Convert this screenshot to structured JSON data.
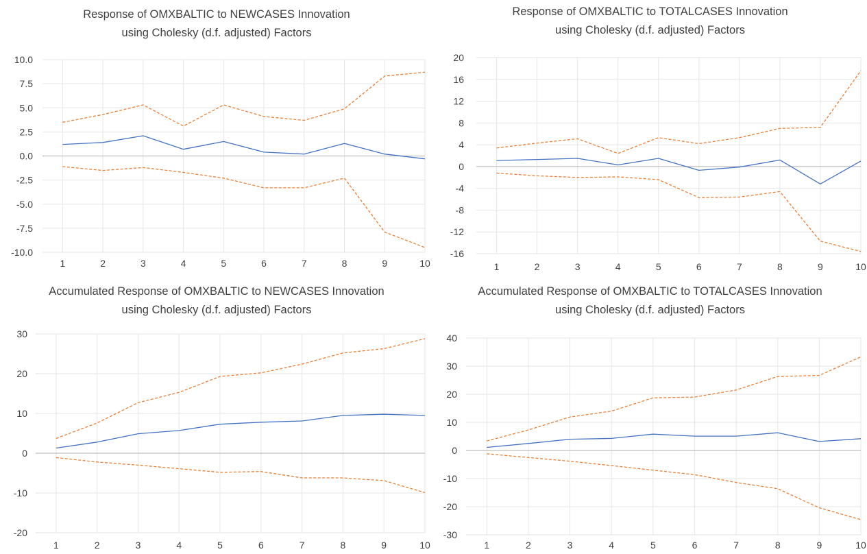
{
  "colors": {
    "response": "#4472c4",
    "band": "#ed7d31",
    "grid": "#e6e6e6",
    "zero": "#bfbfbf"
  },
  "chart_data": [
    {
      "type": "line",
      "title_lines": [
        "Response of OMXBALTIC to NEWCASES Innovation",
        "using Cholesky (d.f. adjusted) Factors"
      ],
      "x": [
        1,
        2,
        3,
        4,
        5,
        6,
        7,
        8,
        9,
        10
      ],
      "x_tick_labels": [
        "1",
        "2",
        "3",
        "4",
        "5",
        "6",
        "7",
        "8",
        "9",
        "10"
      ],
      "ylim": [
        -10,
        10
      ],
      "y_ticks": [
        10,
        7.5,
        5,
        2.5,
        0,
        -2.5,
        -5,
        -7.5,
        -10
      ],
      "y_tick_labels": [
        "10.0",
        "7.5",
        "5.0",
        "2.5",
        "0.0",
        "-2.5",
        "-5.0",
        "-7.5",
        "-10.0"
      ],
      "series": [
        {
          "role": "response",
          "values": [
            1.2,
            1.4,
            2.1,
            0.7,
            1.5,
            0.4,
            0.2,
            1.3,
            0.2,
            -0.3
          ]
        },
        {
          "role": "upper",
          "values": [
            3.5,
            4.3,
            5.3,
            3.1,
            5.3,
            4.1,
            3.7,
            4.9,
            8.3,
            8.7
          ]
        },
        {
          "role": "lower",
          "values": [
            -1.1,
            -1.5,
            -1.2,
            -1.7,
            -2.3,
            -3.3,
            -3.3,
            -2.3,
            -7.9,
            -9.5
          ]
        }
      ]
    },
    {
      "type": "line",
      "title_lines": [
        "Response of OMXBALTIC to TOTALCASES Innovation",
        "using Cholesky (d.f. adjusted) Factors"
      ],
      "x": [
        1,
        2,
        3,
        4,
        5,
        6,
        7,
        8,
        9,
        10
      ],
      "x_tick_labels": [
        "1",
        "2",
        "3",
        "4",
        "5",
        "6",
        "7",
        "8",
        "9",
        "10"
      ],
      "ylim": [
        -16,
        20
      ],
      "y_ticks": [
        20,
        16,
        12,
        8,
        4,
        0,
        -4,
        -8,
        -12,
        -16
      ],
      "y_tick_labels": [
        "20",
        "16",
        "12",
        "8",
        "4",
        "0",
        "-4",
        "-8",
        "-12",
        "-16"
      ],
      "series": [
        {
          "role": "response",
          "values": [
            1.1,
            1.3,
            1.5,
            0.3,
            1.5,
            -0.7,
            -0.1,
            1.2,
            -3.2,
            1.0
          ]
        },
        {
          "role": "upper",
          "values": [
            3.4,
            4.3,
            5.1,
            2.4,
            5.3,
            4.2,
            5.3,
            7.0,
            7.2,
            17.6
          ]
        },
        {
          "role": "lower",
          "values": [
            -1.2,
            -1.7,
            -2.0,
            -1.9,
            -2.4,
            -5.7,
            -5.6,
            -4.6,
            -13.7,
            -15.6
          ]
        }
      ]
    },
    {
      "type": "line",
      "title_lines": [
        "Accumulated Response of OMXBALTIC to NEWCASES Innovation",
        "using Cholesky (d.f. adjusted) Factors"
      ],
      "x": [
        1,
        2,
        3,
        4,
        5,
        6,
        7,
        8,
        9,
        10
      ],
      "x_tick_labels": [
        "1",
        "2",
        "3",
        "4",
        "5",
        "6",
        "7",
        "8",
        "9",
        "10"
      ],
      "ylim": [
        -20,
        30
      ],
      "y_ticks": [
        30,
        20,
        10,
        0,
        -10,
        -20
      ],
      "y_tick_labels": [
        "30",
        "20",
        "10",
        "0",
        "-10",
        "-20"
      ],
      "series": [
        {
          "role": "response",
          "values": [
            1.3,
            2.8,
            4.9,
            5.7,
            7.3,
            7.8,
            8.1,
            9.5,
            9.8,
            9.5
          ]
        },
        {
          "role": "upper",
          "values": [
            3.7,
            7.6,
            12.7,
            15.3,
            19.3,
            20.2,
            22.4,
            25.2,
            26.3,
            28.8
          ]
        },
        {
          "role": "lower",
          "values": [
            -1.1,
            -2.2,
            -3.0,
            -3.9,
            -4.8,
            -4.6,
            -6.2,
            -6.2,
            -6.9,
            -9.9
          ]
        }
      ]
    },
    {
      "type": "line",
      "title_lines": [
        "Accumulated Response of OMXBALTIC to TOTALCASES Innovation",
        "using Cholesky (d.f. adjusted) Factors"
      ],
      "x": [
        1,
        2,
        3,
        4,
        5,
        6,
        7,
        8,
        9,
        10
      ],
      "x_tick_labels": [
        "1",
        "2",
        "3",
        "4",
        "5",
        "6",
        "7",
        "8",
        "9",
        "10"
      ],
      "ylim": [
        -30,
        40
      ],
      "y_ticks": [
        40,
        30,
        20,
        10,
        0,
        -10,
        -20,
        -30
      ],
      "y_tick_labels": [
        "40",
        "30",
        "20",
        "10",
        "0",
        "-10",
        "-20",
        "-30"
      ],
      "series": [
        {
          "role": "response",
          "values": [
            1.1,
            2.5,
            4.0,
            4.3,
            5.8,
            5.1,
            5.1,
            6.3,
            3.2,
            4.2
          ]
        },
        {
          "role": "upper",
          "values": [
            3.4,
            7.3,
            11.9,
            14.0,
            18.7,
            19.0,
            21.5,
            26.3,
            26.7,
            33.3
          ]
        },
        {
          "role": "lower",
          "values": [
            -1.2,
            -2.5,
            -3.8,
            -5.4,
            -7.0,
            -8.6,
            -11.4,
            -13.6,
            -20.4,
            -24.6
          ]
        }
      ]
    }
  ]
}
